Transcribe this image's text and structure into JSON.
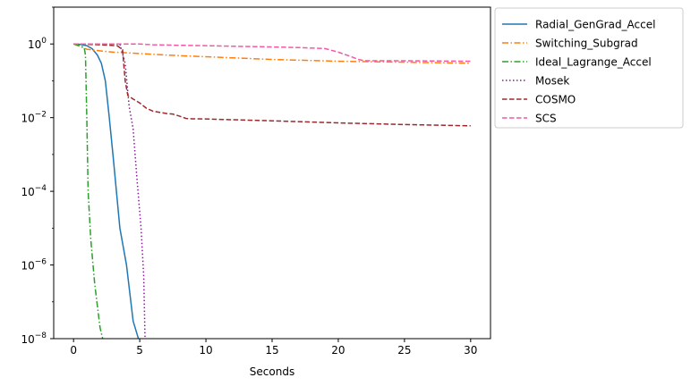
{
  "chart_data": {
    "type": "line",
    "title": "",
    "xlabel": "Seconds",
    "ylabel": "",
    "yscale": "log",
    "xlim": [
      -1.5,
      31.5
    ],
    "ylim": [
      1e-08,
      10
    ],
    "xticks": [
      0,
      5,
      10,
      15,
      20,
      25,
      30
    ],
    "xtick_labels": [
      "0",
      "5",
      "10",
      "15",
      "20",
      "25",
      "30"
    ],
    "yticks": [
      1e-08,
      1e-06,
      0.0001,
      0.01,
      1
    ],
    "ytick_labels": [
      {
        "base": "10",
        "exp": "−8"
      },
      {
        "base": "10",
        "exp": "−6"
      },
      {
        "base": "10",
        "exp": "−4"
      },
      {
        "base": "10",
        "exp": "−2"
      },
      {
        "base": "10",
        "exp": "0"
      }
    ],
    "grid": false,
    "legend": "outside-upper-right",
    "series": [
      {
        "name": "Radial_GenGrad_Accel",
        "color": "#1f77b4",
        "dash": "solid",
        "x": [
          0,
          0.5,
          1.0,
          1.4,
          1.8,
          2.1,
          2.4,
          2.7,
          3.0,
          3.5,
          4.0,
          4.5,
          4.9
        ],
        "y": [
          1.0,
          0.98,
          0.9,
          0.75,
          0.5,
          0.3,
          0.1,
          0.01,
          0.0008,
          1e-05,
          1e-06,
          3e-08,
          1e-08
        ]
      },
      {
        "name": "Switching_Subgrad",
        "color": "#ff7f0e",
        "dash": "dashdot",
        "x": [
          0,
          1,
          2,
          3,
          5,
          7,
          10,
          15,
          20,
          25,
          30
        ],
        "y": [
          1.0,
          0.72,
          0.65,
          0.6,
          0.55,
          0.5,
          0.45,
          0.38,
          0.34,
          0.32,
          0.3
        ]
      },
      {
        "name": "Ideal_Lagrange_Accel",
        "color": "#2ca02c",
        "dash": "dashdot",
        "x": [
          0,
          0.5,
          0.8,
          0.9,
          1.0,
          1.1,
          1.3,
          1.6,
          2.0,
          2.2
        ],
        "y": [
          1.0,
          0.9,
          0.8,
          0.5,
          0.01,
          0.0001,
          5e-06,
          3e-07,
          2e-08,
          1e-08
        ]
      },
      {
        "name": "Mosek",
        "color": "#7f1f8f",
        "dash": "dotted",
        "x": [
          0,
          2,
          3.5,
          3.9,
          4.2,
          4.5,
          4.8,
          5.1,
          5.3,
          5.4
        ],
        "y": [
          1.0,
          1.0,
          1.0,
          0.3,
          0.02,
          0.005,
          0.0002,
          1e-05,
          5e-07,
          1e-08
        ]
      },
      {
        "name": "COSMO",
        "color": "#a0282c",
        "dash": "dashed",
        "x": [
          0,
          1,
          2,
          3.3,
          3.7,
          3.9,
          4.1,
          4.5,
          5.0,
          5.5,
          6.0,
          7.0,
          7.5,
          8.0,
          8.5,
          9.0,
          10,
          15,
          20,
          25,
          30
        ],
        "y": [
          1.0,
          0.98,
          0.95,
          0.9,
          0.7,
          0.1,
          0.04,
          0.032,
          0.025,
          0.018,
          0.015,
          0.013,
          0.0125,
          0.011,
          0.0095,
          0.0093,
          0.0092,
          0.0082,
          0.0072,
          0.0065,
          0.006
        ]
      },
      {
        "name": "SCS",
        "color": "#f05aa5",
        "dash": "dashed",
        "x": [
          0,
          2,
          5,
          6,
          8,
          10,
          12,
          15,
          17,
          19,
          20,
          21,
          21.5,
          22,
          25,
          30
        ],
        "y": [
          1.0,
          1.0,
          1.0,
          0.95,
          0.92,
          0.9,
          0.87,
          0.83,
          0.8,
          0.75,
          0.6,
          0.45,
          0.38,
          0.35,
          0.35,
          0.34
        ]
      }
    ]
  }
}
